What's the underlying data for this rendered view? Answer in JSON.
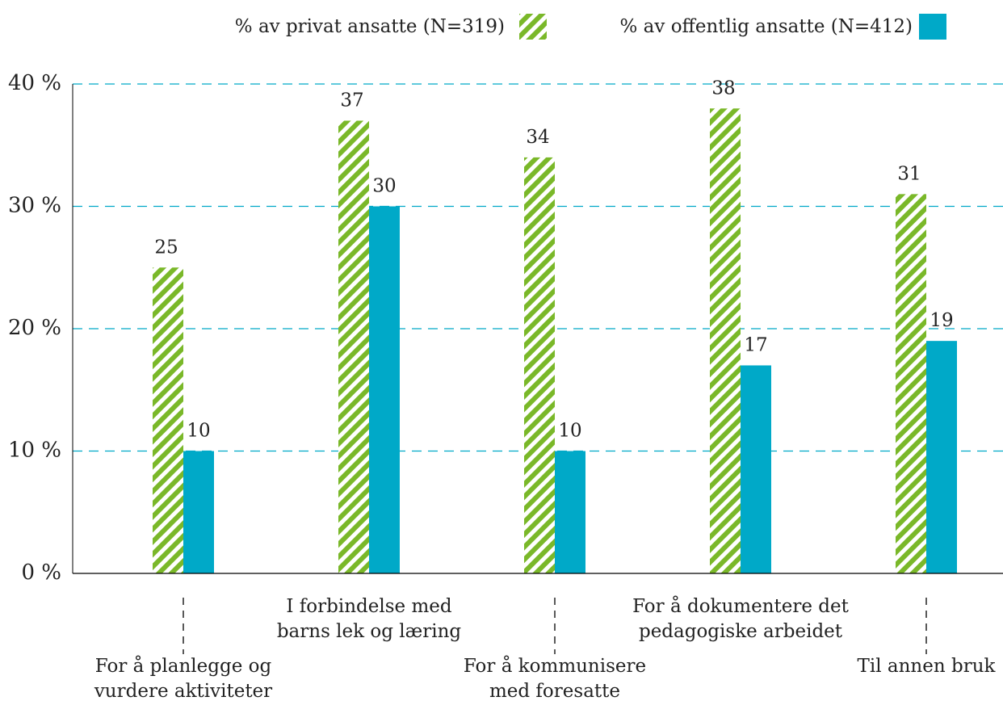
{
  "chart_data": {
    "type": "bar",
    "categories": [
      "For å planlegge og\nvurdere aktiviteter",
      "I forbindelse med\nbarns lek og læring",
      "For å kommunisere\nmed foresatte",
      "For å dokumentere det\npedagogiske arbeidet",
      "Til annen bruk"
    ],
    "series": [
      {
        "name": "% av privat ansatte (N=319)",
        "color": "#7ab829",
        "pattern": "hatch",
        "values": [
          25,
          37,
          34,
          38,
          31
        ]
      },
      {
        "name": "% av offentlig ansatte (N=412)",
        "color": "#00a9c8",
        "values": [
          10,
          30,
          10,
          17,
          19
        ]
      }
    ],
    "ylim": [
      0,
      40
    ],
    "yticks": [
      {
        "value": 0,
        "label": "0 %"
      },
      {
        "value": 10,
        "label": "10 %"
      },
      {
        "value": 20,
        "label": "20 %"
      },
      {
        "value": 30,
        "label": "30 %"
      },
      {
        "value": 40,
        "label": "40 %"
      }
    ],
    "grid": true,
    "legend": "top"
  }
}
